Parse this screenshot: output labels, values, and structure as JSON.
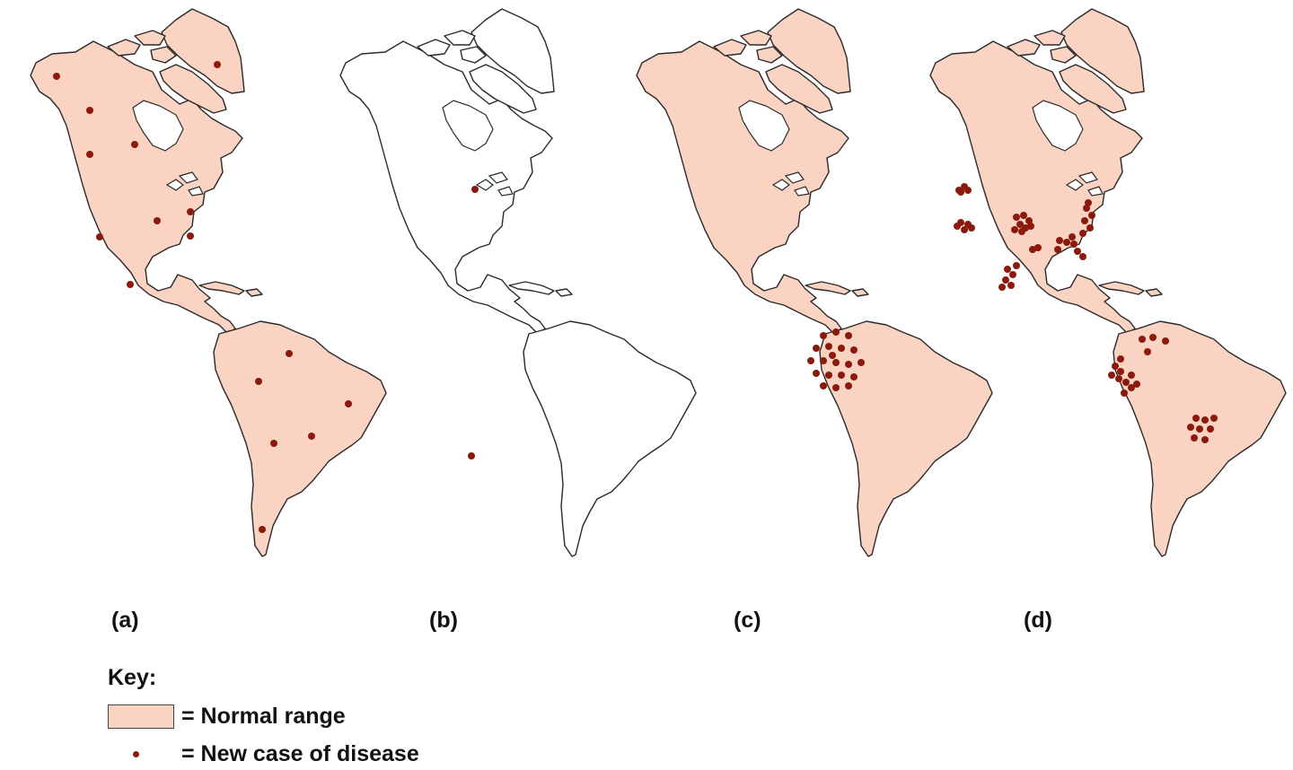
{
  "colors": {
    "normal_range": "#fbd3c3",
    "outline": "#2a2a2a",
    "case_dot": "#8b1a0c",
    "unfilled": "#ffffff"
  },
  "panels": [
    {
      "label": "(a)",
      "filled": true,
      "cases": "scattered widely across North and South America"
    },
    {
      "label": "(b)",
      "filled": false,
      "cases": "two isolated cases"
    },
    {
      "label": "(c)",
      "filled": true,
      "cases": "single dense cluster in northwestern South America"
    },
    {
      "label": "(d)",
      "filled": true,
      "cases": "multiple clusters in the United States, Mexico and South America"
    }
  ],
  "key": {
    "title": "Key:",
    "normal_range": "= Normal range",
    "new_case": "= New case of disease"
  }
}
